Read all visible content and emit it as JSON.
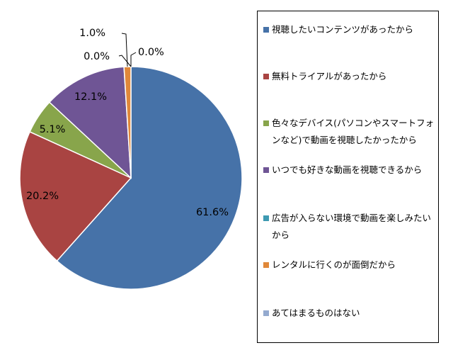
{
  "chart_data": {
    "type": "pie",
    "categories": [
      "視聴したいコンテンツがあったから",
      "無料トライアルがあったから",
      "色々なデバイス(パソコンやスマートフォンなど)で動画を視聴したかったから",
      "いつでも好きな動画を視聴できるから",
      "広告が入らない環境で動画を楽しみたいから",
      "レンタルに行くのが面倒だから",
      "あてはまるものはない"
    ],
    "values": [
      61.6,
      20.2,
      5.1,
      12.1,
      0.0,
      1.0,
      0.0
    ],
    "data_labels": [
      "61.6%",
      "20.2%",
      "5.1%",
      "12.1%",
      "0.0%",
      "1.0%",
      "0.0%"
    ],
    "colors": [
      "#4672A8",
      "#A94442",
      "#88A54B",
      "#6F5595",
      "#3E9AB2",
      "#E0883A",
      "#94AACF"
    ],
    "legend_position": "right",
    "title": ""
  }
}
